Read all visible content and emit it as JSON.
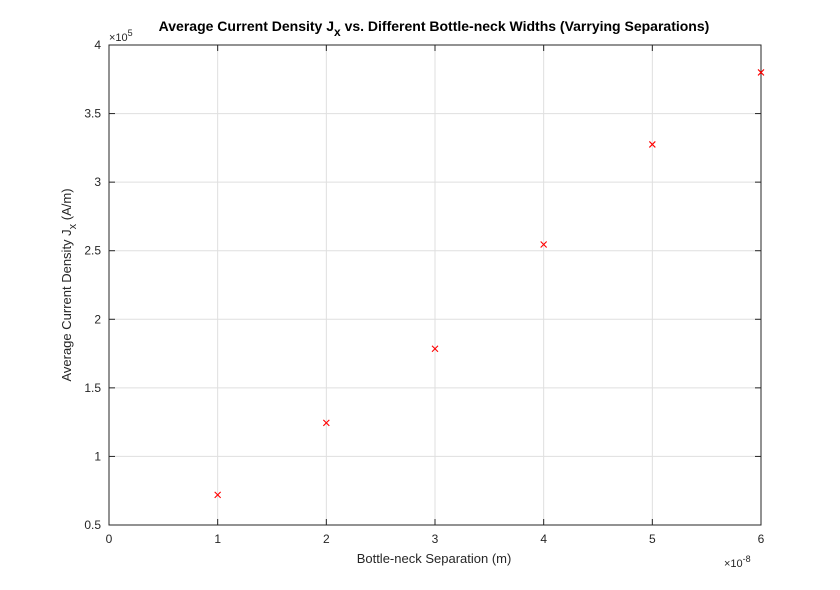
{
  "chart_data": {
    "type": "scatter",
    "title": "Average Current Density J",
    "title_sub": "x",
    "title_rest": " vs. Different Bottle-neck Widths (Varrying Separations)",
    "xlabel": "Bottle-neck Separation (m)",
    "ylabel": "Average Current Density J",
    "ylabel_sub": "x",
    "ylabel_rest": " (A/m)",
    "x_multiplier": "×10",
    "x_exponent": "-8",
    "y_multiplier": "×10",
    "y_exponent": "5",
    "xlim": [
      0,
      6
    ],
    "ylim": [
      0.5,
      4
    ],
    "x_ticks": [
      "0",
      "1",
      "2",
      "3",
      "4",
      "5",
      "6"
    ],
    "y_ticks": [
      "0.5",
      "1",
      "1.5",
      "2",
      "2.5",
      "3",
      "3.5",
      "4"
    ],
    "grid": true,
    "marker_color": "#ff0000",
    "marker": "x",
    "series": [
      {
        "x": [
          1,
          2,
          3,
          4,
          5,
          6
        ],
        "y": [
          0.72,
          1.245,
          1.785,
          2.545,
          3.275,
          3.8
        ]
      }
    ]
  }
}
